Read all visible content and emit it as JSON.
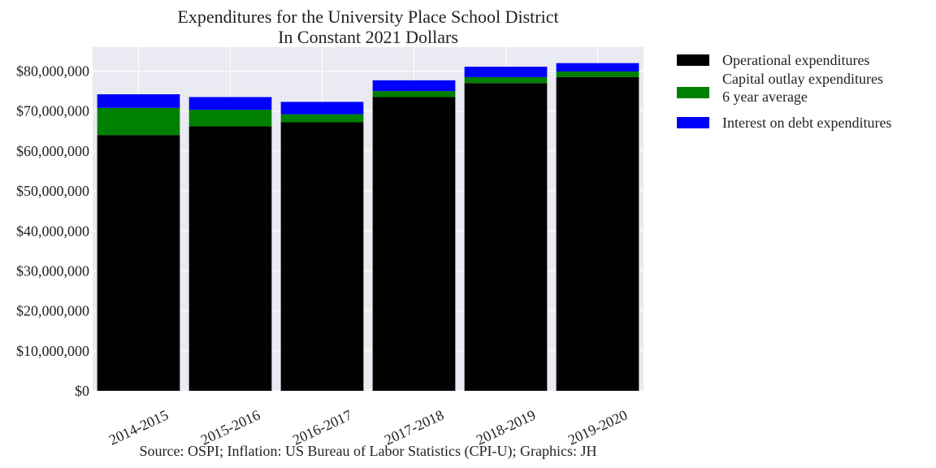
{
  "chart_data": {
    "type": "bar",
    "stacked": true,
    "title": "Expenditures for the University Place School District",
    "subtitle": "In Constant 2021 Dollars",
    "xlabel": "",
    "ylabel": "",
    "categories": [
      "2014-2015",
      "2015-2016",
      "2016-2017",
      "2017-2018",
      "2018-2019",
      "2019-2020"
    ],
    "series": [
      {
        "name": "Operational expenditures",
        "color": "#000000",
        "values": [
          64000000,
          66200000,
          67200000,
          73500000,
          77000000,
          78500000
        ]
      },
      {
        "name": "Capital outlay expenditures 6 year average",
        "legend_lines": [
          "Capital outlay expenditures",
          "6 year average"
        ],
        "color": "#008000",
        "values": [
          6800000,
          4100000,
          2000000,
          1500000,
          1500000,
          1400000
        ]
      },
      {
        "name": "Interest on debt expenditures",
        "color": "#0000ff",
        "values": [
          3400000,
          3200000,
          3100000,
          2700000,
          2600000,
          2100000
        ]
      }
    ],
    "ylim": [
      0,
      86000000
    ],
    "yticks": [
      0,
      10000000,
      20000000,
      30000000,
      40000000,
      50000000,
      60000000,
      70000000,
      80000000
    ],
    "ytick_labels": [
      "$0",
      "$10,000,000",
      "$20,000,000",
      "$30,000,000",
      "$40,000,000",
      "$50,000,000",
      "$60,000,000",
      "$70,000,000",
      "$80,000,000"
    ],
    "grid": true,
    "legend_position": "outside-top-right",
    "footnote": "Source: OSPI; Inflation: US Bureau of Labor Statistics (CPI-U); Graphics: JH",
    "colors": {
      "plot_background": "#eaeaf2",
      "grid": "#ffffff",
      "text": "#222222"
    }
  }
}
